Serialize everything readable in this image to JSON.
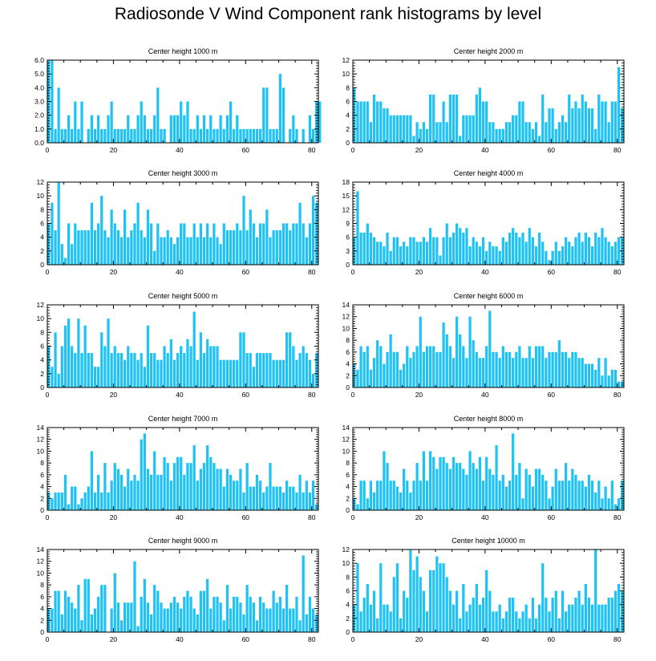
{
  "title": "Radiosonde V Wind Component rank histograms by level",
  "colors": {
    "bar": "#1ec2f5",
    "axis": "#000000",
    "background": "#ffffff"
  },
  "chart_data": [
    {
      "type": "bar",
      "title": "Center height 1000 m",
      "xlabel": "",
      "ylabel": "",
      "x_ticks": [
        0,
        20,
        40,
        60,
        80
      ],
      "xlim": [
        0,
        82
      ],
      "ylim": [
        0,
        6
      ],
      "y_ticks": [
        0,
        1,
        2,
        3,
        4,
        5,
        6
      ],
      "y_tick_labels": [
        "0.0",
        "1.0",
        "2.0",
        "3.0",
        "4.0",
        "5.0",
        "6.0"
      ],
      "values": [
        6,
        6,
        1,
        4,
        1,
        1,
        2,
        1,
        3,
        1,
        3,
        0,
        1,
        2,
        1,
        2,
        1,
        1,
        2,
        3,
        1,
        1,
        1,
        1,
        2,
        1,
        1,
        2,
        3,
        2,
        1,
        1,
        2,
        4,
        1,
        1,
        0,
        2,
        2,
        2,
        3,
        2,
        3,
        1,
        1,
        2,
        1,
        2,
        1,
        2,
        1,
        1,
        2,
        1,
        2,
        3,
        1,
        2,
        1,
        1,
        1,
        1,
        1,
        1,
        1,
        4,
        4,
        1,
        1,
        1,
        5,
        4,
        0,
        1,
        2,
        1,
        0,
        1,
        0,
        2,
        1,
        3,
        3
      ]
    },
    {
      "type": "bar",
      "title": "Center height 2000 m",
      "xlabel": "",
      "ylabel": "",
      "x_ticks": [
        0,
        20,
        40,
        60,
        80
      ],
      "xlim": [
        0,
        82
      ],
      "ylim": [
        0,
        12
      ],
      "y_ticks": [
        0,
        2,
        4,
        6,
        8,
        10,
        12
      ],
      "values": [
        8,
        6,
        6,
        6,
        6,
        3,
        7,
        6,
        6,
        5,
        5,
        4,
        4,
        4,
        4,
        4,
        4,
        4,
        1,
        3,
        2,
        3,
        2,
        7,
        7,
        3,
        3,
        6,
        3,
        7,
        7,
        7,
        1,
        4,
        4,
        4,
        4,
        7,
        8,
        6,
        6,
        3,
        3,
        2,
        2,
        2,
        3,
        3,
        4,
        4,
        6,
        6,
        3,
        3,
        2,
        3,
        1,
        7,
        3,
        5,
        5,
        2,
        3,
        4,
        3,
        7,
        5,
        6,
        5,
        7,
        6,
        5,
        5,
        2,
        7,
        6,
        6,
        3,
        6,
        6,
        11,
        5
      ]
    },
    {
      "type": "bar",
      "title": "Center height 3000 m",
      "xlabel": "",
      "ylabel": "",
      "x_ticks": [
        0,
        20,
        40,
        60,
        80
      ],
      "xlim": [
        0,
        82
      ],
      "ylim": [
        0,
        12
      ],
      "y_ticks": [
        0,
        2,
        4,
        6,
        8,
        10,
        12
      ],
      "values": [
        6,
        9,
        5,
        12,
        3,
        1,
        6,
        3,
        6,
        5,
        5,
        5,
        5,
        9,
        5,
        6,
        10,
        5,
        4,
        8,
        6,
        5,
        4,
        8,
        4,
        5,
        6,
        9,
        5,
        4,
        8,
        6,
        2,
        6,
        4,
        4,
        5,
        4,
        3,
        4,
        6,
        6,
        4,
        4,
        6,
        4,
        6,
        4,
        6,
        4,
        6,
        4,
        3,
        6,
        5,
        5,
        5,
        6,
        5,
        10,
        5,
        8,
        6,
        4,
        6,
        6,
        8,
        4,
        5,
        5,
        5,
        6,
        6,
        5,
        6,
        6,
        9,
        6,
        4,
        6,
        10,
        9
      ]
    },
    {
      "type": "bar",
      "title": "Center height 4000 m",
      "xlabel": "",
      "ylabel": "",
      "x_ticks": [
        0,
        20,
        40,
        60,
        80
      ],
      "xlim": [
        0,
        82
      ],
      "ylim": [
        0,
        18
      ],
      "y_ticks": [
        0,
        3,
        6,
        9,
        12,
        15,
        18
      ],
      "values": [
        6,
        16,
        7,
        7,
        9,
        7,
        6,
        5,
        5,
        4,
        7,
        3,
        6,
        6,
        4,
        5,
        4,
        6,
        6,
        5,
        5,
        6,
        5,
        8,
        6,
        6,
        2,
        6,
        9,
        6,
        7,
        9,
        8,
        7,
        8,
        4,
        6,
        5,
        4,
        6,
        3,
        5,
        4,
        4,
        3,
        6,
        5,
        7,
        8,
        7,
        6,
        7,
        5,
        8,
        6,
        4,
        7,
        5,
        3,
        1,
        3,
        5,
        3,
        4,
        6,
        5,
        4,
        6,
        7,
        5,
        7,
        6,
        4,
        7,
        6,
        8,
        6,
        5,
        4,
        5,
        6,
        6
      ]
    },
    {
      "type": "bar",
      "title": "Center height 5000 m",
      "xlabel": "",
      "ylabel": "",
      "x_ticks": [
        0,
        20,
        40,
        60,
        80
      ],
      "xlim": [
        0,
        82
      ],
      "ylim": [
        0,
        12
      ],
      "y_ticks": [
        0,
        2,
        4,
        6,
        8,
        10,
        12
      ],
      "values": [
        6,
        3,
        8,
        2,
        6,
        9,
        10,
        6,
        5,
        10,
        5,
        9,
        5,
        5,
        3,
        3,
        8,
        6,
        10,
        5,
        6,
        5,
        5,
        4,
        6,
        5,
        5,
        4,
        5,
        3,
        9,
        5,
        5,
        4,
        4,
        6,
        5,
        7,
        4,
        5,
        6,
        5,
        7,
        6,
        11,
        4,
        8,
        5,
        7,
        6,
        6,
        6,
        4,
        4,
        4,
        4,
        4,
        4,
        8,
        8,
        5,
        5,
        3,
        5,
        5,
        5,
        5,
        5,
        4,
        4,
        4,
        4,
        8,
        8,
        6,
        4,
        5,
        6,
        5,
        4,
        2,
        5
      ]
    },
    {
      "type": "bar",
      "title": "Center height 6000 m",
      "xlabel": "",
      "ylabel": "",
      "x_ticks": [
        0,
        20,
        40,
        60,
        80
      ],
      "xlim": [
        0,
        82
      ],
      "ylim": [
        0,
        14
      ],
      "y_ticks": [
        0,
        2,
        4,
        6,
        8,
        10,
        12,
        14
      ],
      "values": [
        4,
        3,
        7,
        6,
        7,
        3,
        5,
        8,
        7,
        4,
        6,
        9,
        6,
        6,
        3,
        4,
        7,
        5,
        6,
        7,
        12,
        6,
        7,
        7,
        7,
        6,
        6,
        11,
        9,
        7,
        5,
        12,
        9,
        7,
        5,
        12,
        8,
        6,
        5,
        5,
        7,
        13,
        6,
        6,
        5,
        7,
        6,
        6,
        5,
        6,
        7,
        5,
        5,
        7,
        5,
        7,
        7,
        7,
        5,
        6,
        6,
        6,
        8,
        6,
        6,
        5,
        6,
        6,
        5,
        5,
        4,
        4,
        4,
        3,
        5,
        2,
        5,
        2,
        3,
        3,
        1,
        1
      ]
    },
    {
      "type": "bar",
      "title": "Center height 7000 m",
      "xlabel": "",
      "ylabel": "",
      "x_ticks": [
        0,
        20,
        40,
        60,
        80
      ],
      "xlim": [
        0,
        82
      ],
      "ylim": [
        0,
        14
      ],
      "y_ticks": [
        0,
        2,
        4,
        6,
        8,
        10,
        12,
        14
      ],
      "values": [
        3,
        2,
        3,
        3,
        3,
        6,
        1,
        4,
        4,
        1,
        2,
        3,
        4,
        10,
        3,
        6,
        3,
        8,
        3,
        5,
        8,
        7,
        6,
        4,
        7,
        5,
        6,
        5,
        12,
        13,
        7,
        6,
        10,
        6,
        6,
        9,
        8,
        5,
        8,
        9,
        9,
        6,
        8,
        8,
        11,
        5,
        7,
        8,
        11,
        9,
        8,
        7,
        7,
        4,
        7,
        6,
        5,
        5,
        7,
        3,
        8,
        4,
        4,
        6,
        5,
        3,
        4,
        8,
        4,
        4,
        4,
        3,
        5,
        4,
        4,
        3,
        6,
        3,
        5,
        3,
        5,
        1
      ]
    },
    {
      "type": "bar",
      "title": "Center height 8000 m",
      "xlabel": "",
      "ylabel": "",
      "x_ticks": [
        0,
        20,
        40,
        60,
        80
      ],
      "xlim": [
        0,
        82
      ],
      "ylim": [
        0,
        14
      ],
      "y_ticks": [
        0,
        2,
        4,
        6,
        8,
        10,
        12,
        14
      ],
      "values": [
        2,
        1,
        5,
        5,
        2,
        5,
        3,
        5,
        5,
        10,
        8,
        5,
        5,
        4,
        3,
        7,
        5,
        3,
        5,
        8,
        5,
        10,
        5,
        10,
        9,
        7,
        9,
        9,
        8,
        7,
        9,
        8,
        8,
        7,
        6,
        10,
        8,
        7,
        9,
        5,
        9,
        7,
        6,
        11,
        5,
        6,
        4,
        5,
        13,
        6,
        8,
        2,
        7,
        6,
        4,
        7,
        7,
        6,
        5,
        2,
        4,
        7,
        5,
        5,
        8,
        5,
        7,
        6,
        5,
        5,
        4,
        6,
        5,
        3,
        5,
        2,
        4,
        2,
        5,
        1,
        2,
        5
      ]
    },
    {
      "type": "bar",
      "title": "Center height 9000 m",
      "xlabel": "",
      "ylabel": "",
      "x_ticks": [
        0,
        20,
        40,
        60,
        80
      ],
      "xlim": [
        0,
        82
      ],
      "ylim": [
        0,
        14
      ],
      "y_ticks": [
        0,
        2,
        4,
        6,
        8,
        10,
        12,
        14
      ],
      "values": [
        4,
        4,
        7,
        7,
        3,
        7,
        6,
        5,
        4,
        8,
        2,
        9,
        9,
        3,
        4,
        6,
        8,
        8,
        0,
        4,
        10,
        5,
        2,
        5,
        5,
        5,
        12,
        1,
        6,
        9,
        5,
        3,
        8,
        7,
        5,
        4,
        4,
        5,
        6,
        5,
        4,
        6,
        7,
        6,
        4,
        3,
        7,
        7,
        9,
        4,
        6,
        6,
        5,
        2,
        8,
        4,
        6,
        6,
        5,
        3,
        8,
        6,
        5,
        2,
        6,
        5,
        4,
        4,
        7,
        5,
        6,
        4,
        8,
        4,
        4,
        6,
        2,
        13,
        3,
        6,
        4,
        3
      ]
    },
    {
      "type": "bar",
      "title": "Center height 10000 m",
      "xlabel": "",
      "ylabel": "",
      "x_ticks": [
        0,
        20,
        40,
        60,
        80
      ],
      "xlim": [
        0,
        82
      ],
      "ylim": [
        0,
        12
      ],
      "y_ticks": [
        0,
        2,
        4,
        6,
        8,
        10,
        12
      ],
      "values": [
        4,
        10,
        3,
        5,
        7,
        4,
        6,
        2,
        10,
        4,
        4,
        3,
        8,
        10,
        2,
        6,
        5,
        12,
        9,
        11,
        8,
        6,
        3,
        9,
        9,
        11,
        10,
        10,
        8,
        6,
        4,
        6,
        2,
        7,
        3,
        4,
        5,
        7,
        4,
        5,
        9,
        6,
        3,
        3,
        4,
        2,
        3,
        5,
        5,
        3,
        2,
        3,
        4,
        2,
        5,
        2,
        4,
        10,
        5,
        3,
        5,
        6,
        2,
        6,
        3,
        4,
        4,
        5,
        6,
        4,
        7,
        5,
        4,
        12,
        4,
        4,
        4,
        5,
        5,
        6,
        7,
        6
      ]
    }
  ]
}
